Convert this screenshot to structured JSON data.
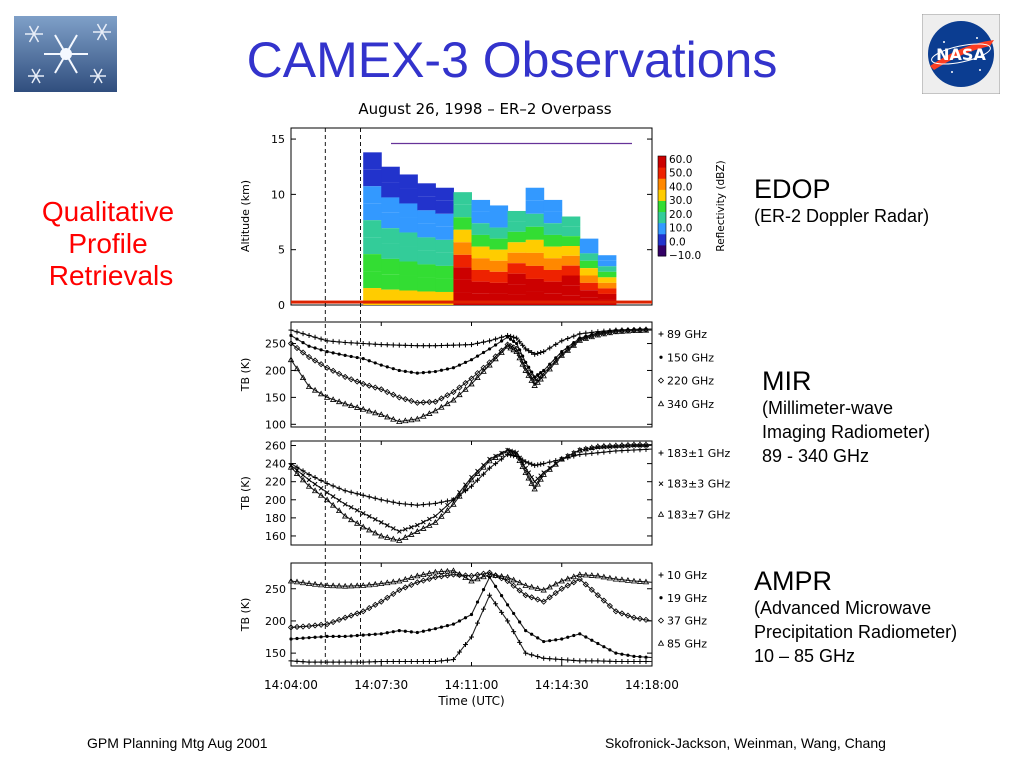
{
  "slide": {
    "title": "CAMEX-3 Observations",
    "side_text": [
      "Qualitative",
      "Profile",
      "Retrievals"
    ],
    "footer_left": "GPM Planning Mtg Aug 2001",
    "footer_right": "Skofronick-Jackson, Weinman, Wang, Chang",
    "logo_text": "NASA"
  },
  "instruments": [
    {
      "name": "EDOP",
      "lines": [
        "(ER-2 Doppler Radar)"
      ]
    },
    {
      "name": "MIR",
      "lines": [
        "(Millimeter-wave",
        "Imaging Radiometer)",
        "89 - 340 GHz"
      ]
    },
    {
      "name": "AMPR",
      "lines": [
        "(Advanced Microwave",
        "Precipitation Radiometer)",
        "10 – 85 GHz"
      ]
    }
  ],
  "colors": {
    "title": "#3333cc",
    "side_text": "#ff0000",
    "reflectivity_scale": [
      "#330066",
      "#2233cc",
      "#3399ff",
      "#33cc99",
      "#33dd33",
      "#ffcc00",
      "#ff8800",
      "#ee2200",
      "#cc0000"
    ]
  },
  "chart_data": [
    {
      "type": "heatmap",
      "title": "August 26, 1998 – ER–2 Overpass",
      "ylabel": "Altitude (km)",
      "yticks": [
        "15",
        "10",
        "5",
        "0"
      ],
      "ylim": [
        0,
        16
      ],
      "colorbar_label": "Reflectivity (dBZ)",
      "colorbar_ticks": [
        "60.0",
        "50.0",
        "40.0",
        "30.0",
        "20.0",
        "10.0",
        "0.0",
        "−10.0"
      ]
    },
    {
      "type": "line",
      "ylabel": "TB (K)",
      "yticks": [
        "250",
        "200",
        "150",
        "100"
      ],
      "ylim": [
        95,
        290
      ],
      "series": [
        {
          "name": "89 GHz",
          "marker": "+",
          "x": [
            0,
            1,
            2,
            3,
            4,
            5,
            6,
            7,
            8,
            9,
            10,
            11,
            12,
            12.5,
            13,
            13.5,
            14,
            15,
            16,
            17,
            18,
            19,
            20
          ],
          "y": [
            275,
            265,
            255,
            252,
            250,
            248,
            247,
            246,
            246,
            247,
            248,
            255,
            265,
            260,
            240,
            230,
            235,
            255,
            268,
            272,
            275,
            276,
            277
          ]
        },
        {
          "name": "150 GHz",
          "marker": "*",
          "x": [
            0,
            1,
            2,
            3,
            4,
            5,
            6,
            7,
            8,
            9,
            10,
            11,
            12,
            12.5,
            13,
            13.5,
            14,
            15,
            16,
            17,
            18,
            19,
            20
          ],
          "y": [
            265,
            245,
            235,
            228,
            222,
            210,
            200,
            195,
            198,
            205,
            220,
            240,
            262,
            250,
            215,
            188,
            200,
            235,
            260,
            270,
            275,
            276,
            277
          ]
        },
        {
          "name": "220 GHz",
          "marker": "◇",
          "x": [
            0,
            1,
            2,
            3,
            4,
            5,
            6,
            7,
            8,
            9,
            10,
            11,
            12,
            12.5,
            13,
            13.5,
            14,
            15,
            16,
            17,
            18,
            19,
            20
          ],
          "y": [
            250,
            225,
            205,
            188,
            175,
            165,
            150,
            140,
            142,
            160,
            185,
            215,
            248,
            240,
            205,
            180,
            195,
            230,
            258,
            268,
            273,
            275,
            276
          ]
        },
        {
          "name": "340 GHz",
          "marker": "△",
          "x": [
            0,
            1,
            2,
            3,
            4,
            5,
            6,
            7,
            8,
            9,
            10,
            11,
            12,
            12.5,
            13,
            13.5,
            14,
            15,
            16,
            17,
            18,
            19,
            20
          ],
          "y": [
            220,
            170,
            150,
            138,
            128,
            118,
            105,
            110,
            125,
            145,
            175,
            210,
            245,
            235,
            200,
            172,
            190,
            228,
            256,
            266,
            272,
            274,
            275
          ]
        }
      ]
    },
    {
      "type": "line",
      "ylabel": "TB (K)",
      "yticks": [
        "260",
        "240",
        "220",
        "200",
        "180",
        "160"
      ],
      "ylim": [
        150,
        265
      ],
      "series": [
        {
          "name": "183±1 GHz",
          "marker": "+",
          "x": [
            0,
            1,
            2,
            3,
            4,
            5,
            6,
            7,
            8,
            9,
            10,
            11,
            12,
            12.5,
            13,
            13.5,
            14,
            15,
            16,
            17,
            18,
            19,
            20
          ],
          "y": [
            240,
            228,
            218,
            210,
            205,
            200,
            196,
            194,
            196,
            200,
            215,
            235,
            250,
            248,
            242,
            238,
            240,
            245,
            250,
            252,
            254,
            255,
            256
          ]
        },
        {
          "name": "183±3 GHz",
          "marker": "x",
          "x": [
            0,
            1,
            2,
            3,
            4,
            5,
            6,
            7,
            8,
            9,
            10,
            11,
            12,
            12.5,
            13,
            13.5,
            14,
            15,
            16,
            17,
            18,
            19,
            20
          ],
          "y": [
            238,
            222,
            208,
            195,
            185,
            175,
            165,
            172,
            182,
            200,
            225,
            245,
            255,
            252,
            235,
            220,
            230,
            245,
            255,
            258,
            259,
            260,
            260
          ]
        },
        {
          "name": "183±7 GHz",
          "marker": "△",
          "x": [
            0,
            1,
            2,
            3,
            4,
            5,
            6,
            7,
            8,
            9,
            10,
            11,
            12,
            12.5,
            13,
            13.5,
            14,
            15,
            16,
            17,
            18,
            19,
            20
          ],
          "y": [
            236,
            215,
            200,
            182,
            170,
            160,
            155,
            165,
            175,
            195,
            222,
            243,
            254,
            250,
            230,
            212,
            228,
            245,
            255,
            259,
            260,
            261,
            261
          ]
        }
      ]
    },
    {
      "type": "line",
      "xlabel": "Time (UTC)",
      "ylabel": "TB (K)",
      "xticks": [
        "14:04:00",
        "14:07:30",
        "14:11:00",
        "14:14:30",
        "14:18:00"
      ],
      "yticks": [
        "250",
        "200",
        "150"
      ],
      "ylim": [
        130,
        290
      ],
      "series": [
        {
          "name": "10 GHz",
          "marker": "+",
          "x": [
            0,
            1,
            2,
            3,
            4,
            5,
            6,
            7,
            8,
            9,
            10,
            11,
            12,
            13,
            14,
            15,
            16,
            17,
            18,
            19,
            20
          ],
          "y": [
            138,
            136,
            136,
            136,
            136,
            137,
            137,
            137,
            137,
            140,
            175,
            240,
            200,
            150,
            142,
            140,
            138,
            138,
            137,
            137,
            137
          ]
        },
        {
          "name": "19 GHz",
          "marker": "*",
          "x": [
            0,
            1,
            2,
            3,
            4,
            5,
            6,
            7,
            8,
            9,
            10,
            11,
            12,
            13,
            14,
            15,
            16,
            17,
            18,
            19,
            20
          ],
          "y": [
            172,
            174,
            176,
            176,
            178,
            180,
            185,
            182,
            188,
            195,
            210,
            268,
            225,
            185,
            168,
            172,
            180,
            165,
            150,
            145,
            143
          ]
        },
        {
          "name": "37 GHz",
          "marker": "◇",
          "x": [
            0,
            1,
            2,
            3,
            4,
            5,
            6,
            7,
            8,
            9,
            10,
            11,
            12,
            13,
            14,
            15,
            16,
            17,
            18,
            19,
            20
          ],
          "y": [
            190,
            192,
            195,
            205,
            215,
            230,
            248,
            260,
            268,
            272,
            270,
            275,
            262,
            240,
            230,
            250,
            265,
            240,
            215,
            205,
            200
          ]
        },
        {
          "name": "85 GHz",
          "marker": "△",
          "x": [
            0,
            1,
            2,
            3,
            4,
            5,
            6,
            7,
            8,
            9,
            10,
            11,
            12,
            13,
            14,
            15,
            16,
            17,
            18,
            19,
            20
          ],
          "y": [
            262,
            258,
            255,
            254,
            255,
            258,
            262,
            270,
            276,
            278,
            262,
            272,
            268,
            255,
            248,
            262,
            272,
            270,
            265,
            262,
            260
          ]
        }
      ]
    }
  ]
}
